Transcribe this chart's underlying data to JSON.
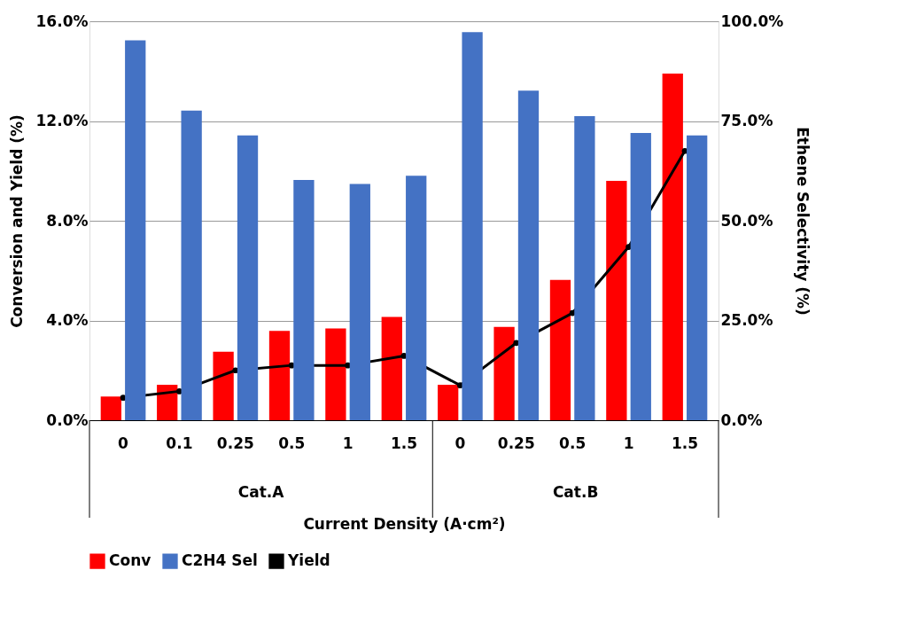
{
  "chart_data": {
    "type": "bar",
    "xlabel": "Current Density (A·cm²)",
    "ylabel": "Conversion and Yield (%)",
    "y2label": "Ethene Selectivity (%)",
    "categories": [
      "0",
      "0.1",
      "0.25",
      "0.5",
      "1",
      "1.5",
      "0",
      "0.25",
      "0.5",
      "1",
      "1.5"
    ],
    "series": [
      {
        "name": "Conv",
        "color": "#ff0000",
        "values": [
          0.95,
          1.42,
          2.75,
          3.58,
          3.68,
          4.14,
          1.42,
          3.74,
          5.63,
          9.6,
          13.9
        ]
      },
      {
        "name": "C2H4 Sel",
        "color": "#4472c4",
        "axis": "y2",
        "values": [
          95.2,
          77.6,
          71.4,
          60.2,
          59.2,
          61.3,
          97.3,
          82.6,
          76.2,
          72.0,
          71.4
        ]
      },
      {
        "name": "Yield",
        "type": "line",
        "color": "#000000",
        "marker": "circle",
        "values": [
          0.9,
          1.16,
          2.0,
          2.2,
          2.2,
          2.58,
          1.4,
          3.1,
          4.3,
          6.95,
          10.8
        ]
      }
    ],
    "ylim": [
      0,
      16
    ],
    "yticks": [
      {
        "value": 0,
        "label": "0.0%"
      },
      {
        "value": 4,
        "label": "4.0%"
      },
      {
        "value": 8,
        "label": "8.0%"
      },
      {
        "value": 12,
        "label": "12.0%"
      },
      {
        "value": 16,
        "label": "16.0%"
      }
    ],
    "y2lim": [
      0,
      100
    ],
    "y2ticks": [
      {
        "value": 0,
        "label": "0.0%"
      },
      {
        "value": 25,
        "label": "25.0%"
      },
      {
        "value": 50,
        "label": "50.0%"
      },
      {
        "value": 75,
        "label": "75.0%"
      },
      {
        "value": 100,
        "label": "100.0%"
      }
    ],
    "annotations": [
      "Cat.A",
      "Cat.B"
    ],
    "grid": "y",
    "legend": "bottom",
    "line_style": "solid"
  }
}
